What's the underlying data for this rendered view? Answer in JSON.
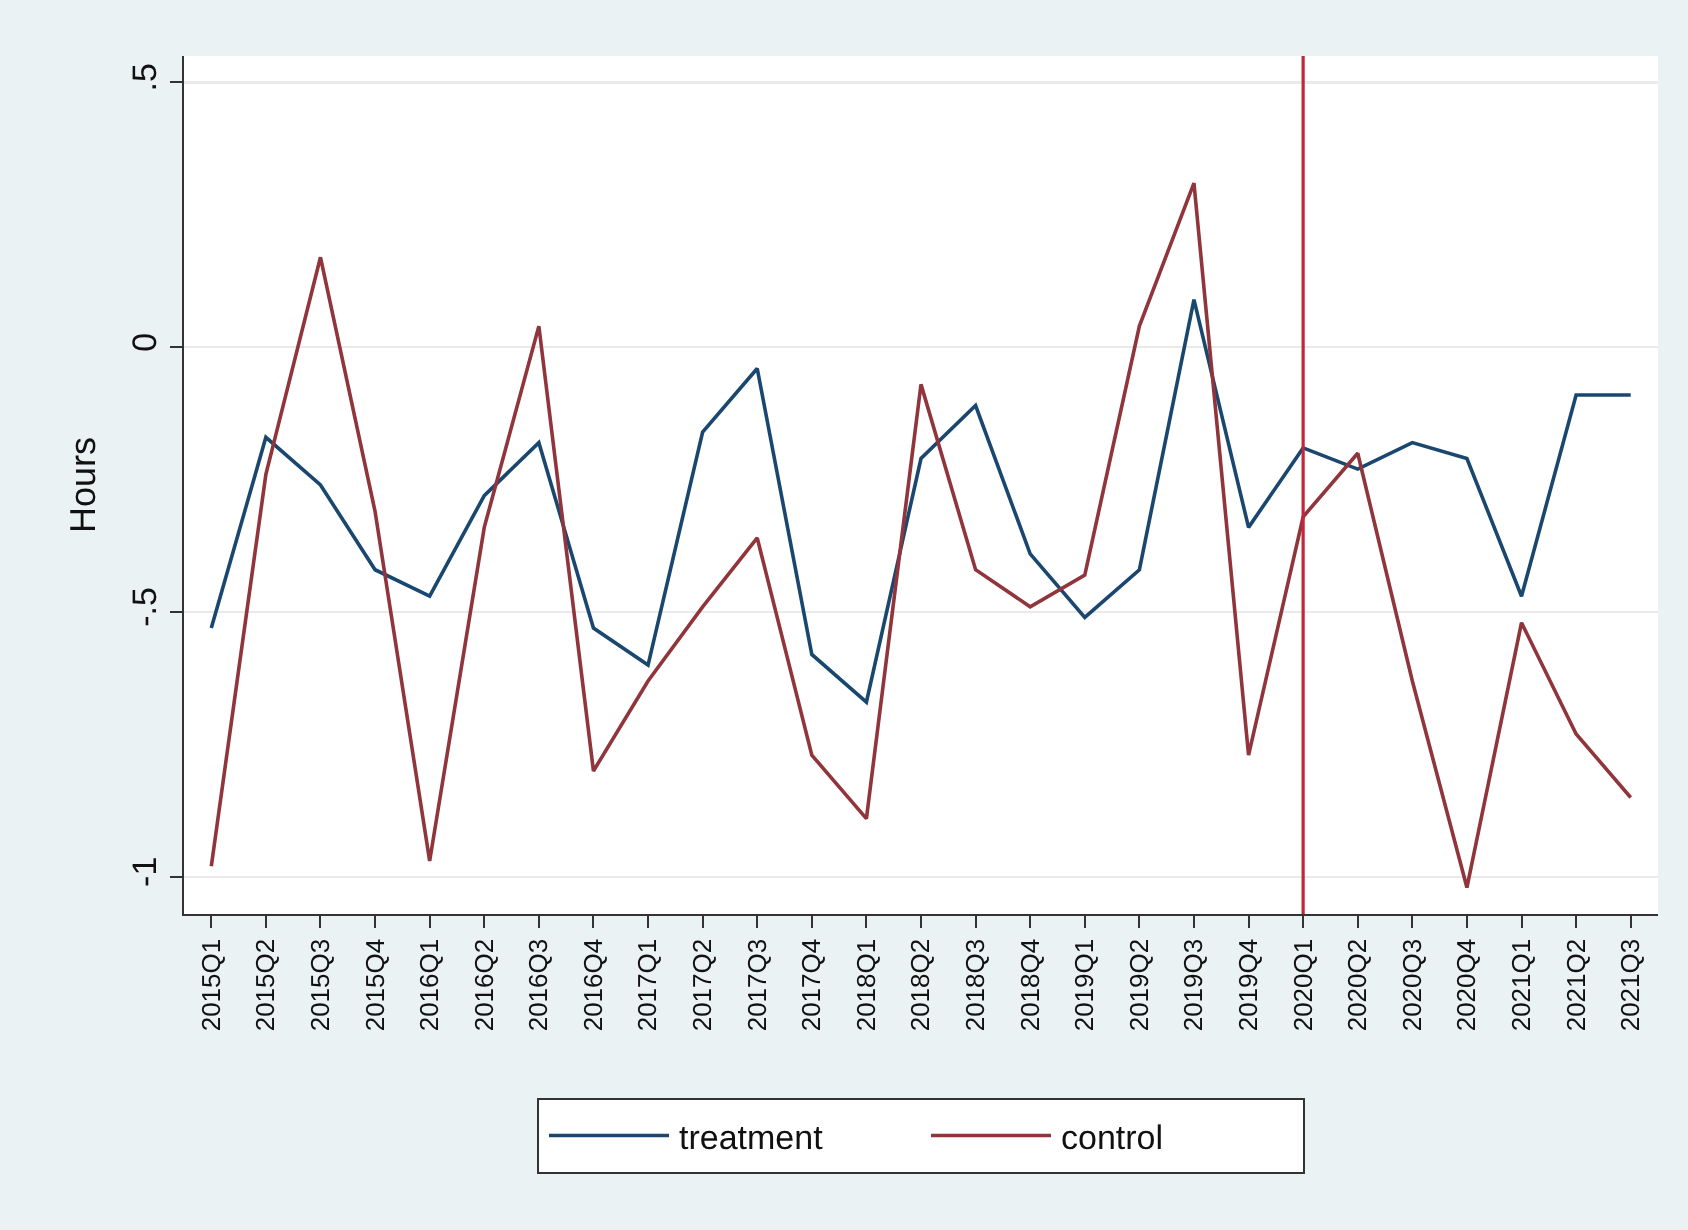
{
  "chart_data": {
    "type": "line",
    "ylabel": "Hours",
    "categories": [
      "2015Q1",
      "2015Q2",
      "2015Q3",
      "2015Q4",
      "2016Q1",
      "2016Q2",
      "2016Q3",
      "2016Q4",
      "2017Q1",
      "2017Q2",
      "2017Q3",
      "2017Q4",
      "2018Q1",
      "2018Q2",
      "2018Q3",
      "2018Q4",
      "2019Q1",
      "2019Q2",
      "2019Q3",
      "2019Q4",
      "2020Q1",
      "2020Q2",
      "2020Q3",
      "2020Q4",
      "2021Q1",
      "2021Q2",
      "2021Q3"
    ],
    "series": [
      {
        "name": "treatment",
        "color": "#1a476f",
        "values": [
          -0.53,
          -0.17,
          -0.26,
          -0.42,
          -0.47,
          -0.28,
          -0.18,
          -0.53,
          -0.6,
          -0.16,
          -0.04,
          -0.58,
          -0.67,
          -0.21,
          -0.11,
          -0.39,
          -0.51,
          -0.42,
          0.09,
          -0.34,
          -0.19,
          -0.23,
          -0.18,
          -0.21,
          -0.47,
          -0.09,
          -0.09
        ]
      },
      {
        "name": "control",
        "color": "#90353b",
        "values": [
          -0.98,
          -0.24,
          0.17,
          -0.31,
          -0.97,
          -0.34,
          0.04,
          -0.8,
          -0.63,
          -0.49,
          -0.36,
          -0.77,
          -0.89,
          -0.07,
          -0.42,
          -0.49,
          -0.43,
          0.04,
          0.31,
          -0.77,
          -0.32,
          -0.2,
          -0.63,
          -1.02,
          -0.52,
          -0.73,
          -0.85
        ]
      }
    ],
    "ylim": [
      -1.07,
      0.55
    ],
    "yticks": [
      -1,
      {
        "value": -0.5,
        "label": "-.5"
      },
      0,
      {
        "value": 0.5,
        "label": ".5"
      }
    ],
    "grid": "y",
    "legend": "bottom",
    "line_style": "solid",
    "ref_lines": [
      {
        "axis": "x",
        "value": "2020Q1",
        "color": "#c0263c"
      }
    ]
  }
}
